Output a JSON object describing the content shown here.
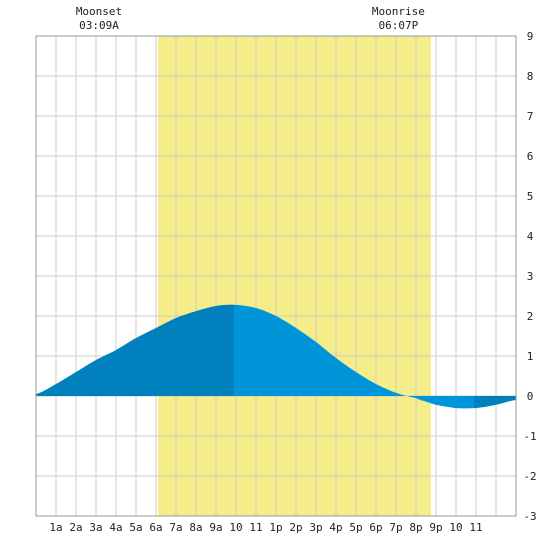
{
  "chart_data": {
    "type": "area",
    "title": "",
    "xlabel": "",
    "ylabel": "",
    "x_tick_labels": [
      "1a",
      "2a",
      "3a",
      "4a",
      "5a",
      "6a",
      "7a",
      "8a",
      "9a",
      "10",
      "11",
      "1p",
      "2p",
      "3p",
      "4p",
      "5p",
      "6p",
      "7p",
      "8p",
      "9p",
      "10",
      "11"
    ],
    "y_tick_labels": [
      "-3",
      "-2",
      "-1",
      "0",
      "1",
      "2",
      "3",
      "4",
      "5",
      "6",
      "7",
      "8",
      "9"
    ],
    "xlim_hours": [
      0,
      24
    ],
    "ylim": [
      -3,
      9
    ],
    "grid": true,
    "daylight_hours": [
      6.1,
      19.75
    ],
    "moon_events": [
      {
        "label": "Moonset",
        "time": "03:09A",
        "hour": 3.15
      },
      {
        "label": "Moonrise",
        "time": "06:07P",
        "hour": 18.12
      }
    ],
    "tide_series": {
      "hours": [
        0,
        1,
        2,
        3,
        4,
        5,
        6,
        7,
        8,
        9,
        9.9,
        11,
        12,
        13,
        14,
        15,
        16,
        17,
        18,
        19,
        19.2,
        20,
        21,
        22,
        23,
        24
      ],
      "values": [
        0.05,
        0.3,
        0.6,
        0.9,
        1.15,
        1.45,
        1.7,
        1.95,
        2.12,
        2.25,
        2.28,
        2.2,
        2.0,
        1.7,
        1.35,
        0.95,
        0.6,
        0.3,
        0.08,
        -0.05,
        -0.1,
        -0.22,
        -0.3,
        -0.3,
        -0.22,
        -0.1
      ]
    },
    "shade_split_hours": [
      9.9,
      21.9
    ]
  },
  "colors": {
    "background": "#ffffff",
    "grid": "#cccccc",
    "frame": "#999999",
    "daylight": "#f5ec8a",
    "tide_dark": "#0080bd",
    "tide_light": "#0095d8",
    "text": "#222222"
  }
}
